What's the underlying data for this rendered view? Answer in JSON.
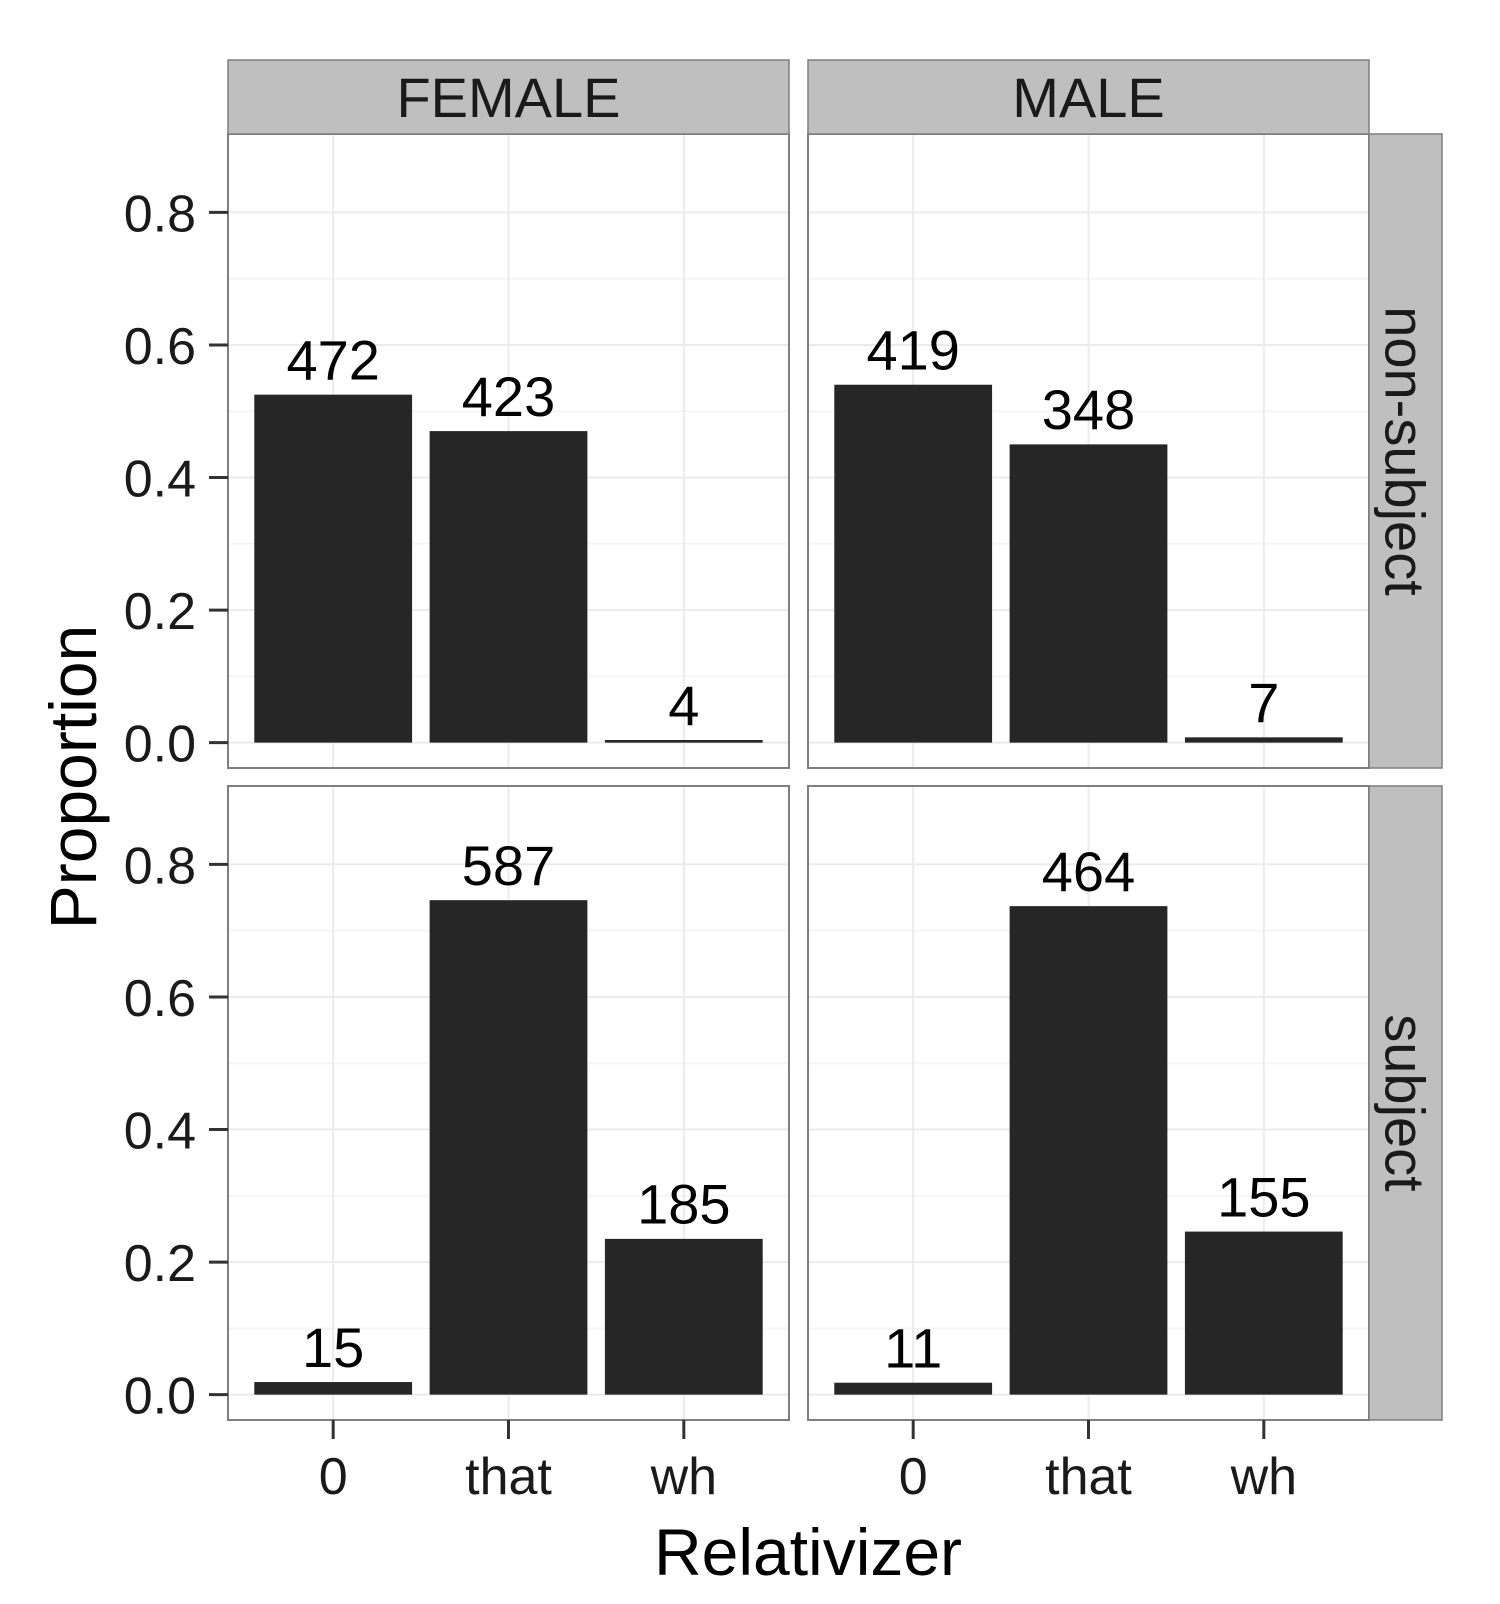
{
  "chart_data": {
    "type": "bar",
    "xlabel": "Relativizer",
    "ylabel": "Proportion",
    "categories": [
      "0",
      "that",
      "wh"
    ],
    "ylim": [
      0,
      0.88
    ],
    "yticks": [
      0.0,
      0.2,
      0.4,
      0.6,
      0.8
    ],
    "ytick_labels": [
      "0.0",
      "0.2",
      "0.4",
      "0.6",
      "0.8"
    ],
    "grid": true,
    "column_facets": [
      "FEMALE",
      "MALE"
    ],
    "row_facets": [
      "non-subject",
      "subject"
    ],
    "panels": [
      {
        "column": "FEMALE",
        "row": "non-subject",
        "values": [
          0.525,
          0.47,
          0.004
        ],
        "labels": [
          "472",
          "423",
          "4"
        ]
      },
      {
        "column": "MALE",
        "row": "non-subject",
        "values": [
          0.54,
          0.45,
          0.008
        ],
        "labels": [
          "419",
          "348",
          "7"
        ]
      },
      {
        "column": "FEMALE",
        "row": "subject",
        "values": [
          0.019,
          0.746,
          0.235
        ],
        "labels": [
          "15",
          "587",
          "185"
        ]
      },
      {
        "column": "MALE",
        "row": "subject",
        "values": [
          0.018,
          0.737,
          0.246
        ],
        "labels": [
          "11",
          "464",
          "155"
        ]
      }
    ],
    "colors": {
      "bar": "#262626",
      "strip": "#bfbfbf",
      "grid": "#ebebeb",
      "border": "#7f7f7f"
    }
  }
}
